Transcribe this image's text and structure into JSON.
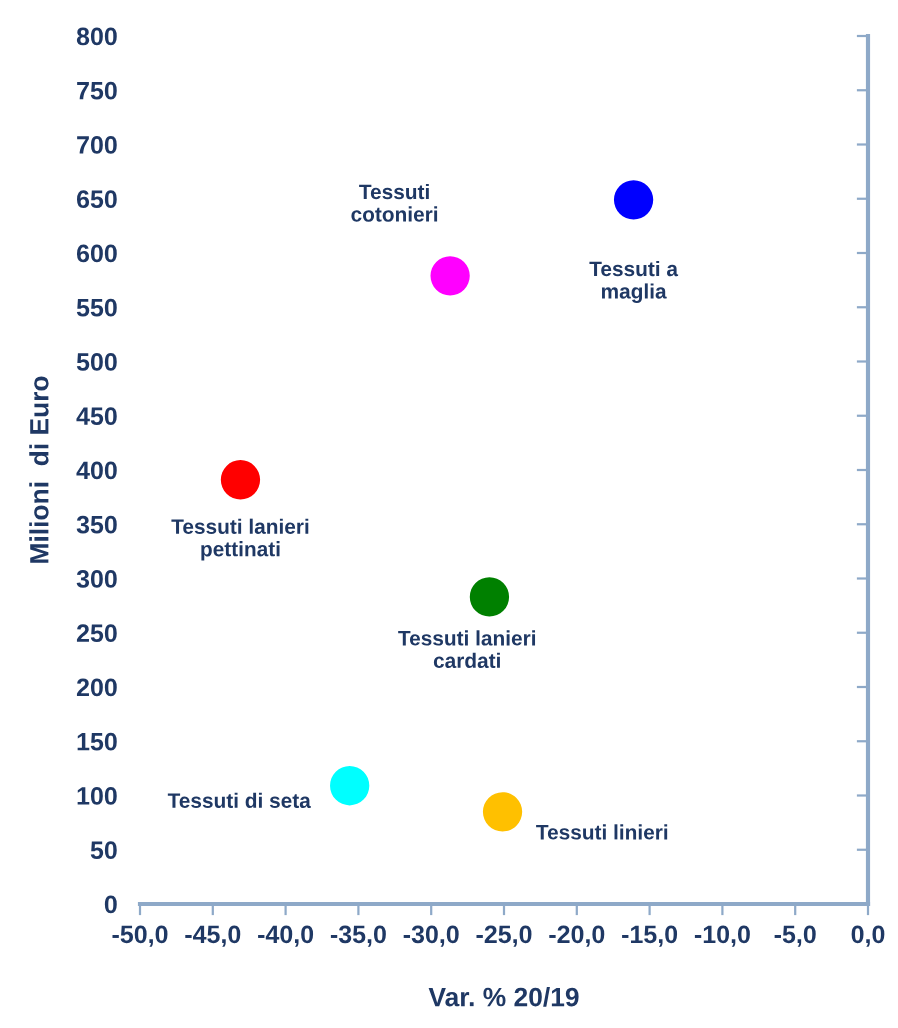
{
  "chart_data": {
    "type": "scatter",
    "xlabel": "Var. % 20/19",
    "ylabel": "Milioni  di Euro",
    "xlim": [
      -50,
      0
    ],
    "ylim": [
      0,
      800
    ],
    "xticks": [
      {
        "value": -50,
        "label": "-50,0"
      },
      {
        "value": -45,
        "label": "-45,0"
      },
      {
        "value": -40,
        "label": "-40,0"
      },
      {
        "value": -35,
        "label": "-35,0"
      },
      {
        "value": -30,
        "label": "-30,0"
      },
      {
        "value": -25,
        "label": "-25,0"
      },
      {
        "value": -20,
        "label": "-20,0"
      },
      {
        "value": -15,
        "label": "-15,0"
      },
      {
        "value": -10,
        "label": "-10,0"
      },
      {
        "value": -5,
        "label": "-5,0"
      },
      {
        "value": 0,
        "label": "0,0"
      }
    ],
    "yticks": [
      0,
      50,
      100,
      150,
      200,
      250,
      300,
      350,
      400,
      450,
      500,
      550,
      600,
      650,
      700,
      750,
      800
    ],
    "grid": false,
    "legend": false,
    "marker": "circle",
    "series": [
      {
        "name": "Tessuti a\nmaglia",
        "color": "#0000ff",
        "x": [
          -16.1
        ],
        "values": [
          649
        ]
      },
      {
        "name": "Tessuti\ncotonieri",
        "color": "#ff00ff",
        "x": [
          -28.7
        ],
        "values": [
          579
        ]
      },
      {
        "name": "Tessuti lanieri\npettinati",
        "color": "#ff0000",
        "x": [
          -43.1
        ],
        "values": [
          391
        ]
      },
      {
        "name": "Tessuti lanieri\ncardati",
        "color": "#008000",
        "x": [
          -26.0
        ],
        "values": [
          283
        ]
      },
      {
        "name": "Tessuti di seta",
        "color": "#00ffff",
        "x": [
          -35.6
        ],
        "values": [
          109
        ]
      },
      {
        "name": "Tessuti linieri",
        "color": "#ffc000",
        "x": [
          -25.1
        ],
        "values": [
          85
        ]
      }
    ]
  }
}
